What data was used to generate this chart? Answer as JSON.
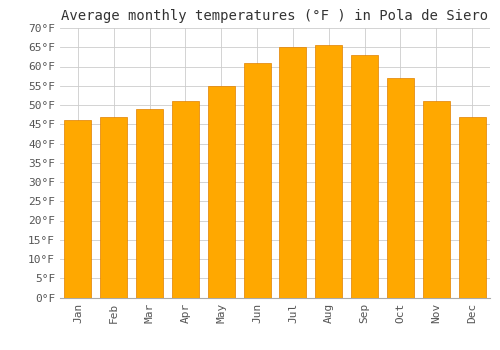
{
  "title": "Average monthly temperatures (°F ) in Pola de Siero",
  "months": [
    "Jan",
    "Feb",
    "Mar",
    "Apr",
    "May",
    "Jun",
    "Jul",
    "Aug",
    "Sep",
    "Oct",
    "Nov",
    "Dec"
  ],
  "values": [
    46,
    47,
    49,
    51,
    55,
    61,
    65,
    65.5,
    63,
    57,
    51,
    47
  ],
  "bar_color": "#FFA800",
  "bar_edge_color": "#E08000",
  "background_color": "#FFFFFF",
  "grid_color": "#CCCCCC",
  "ylim": [
    0,
    70
  ],
  "yticks": [
    0,
    5,
    10,
    15,
    20,
    25,
    30,
    35,
    40,
    45,
    50,
    55,
    60,
    65,
    70
  ],
  "ylabel_suffix": "°F",
  "title_fontsize": 10,
  "tick_fontsize": 8,
  "font_family": "monospace"
}
